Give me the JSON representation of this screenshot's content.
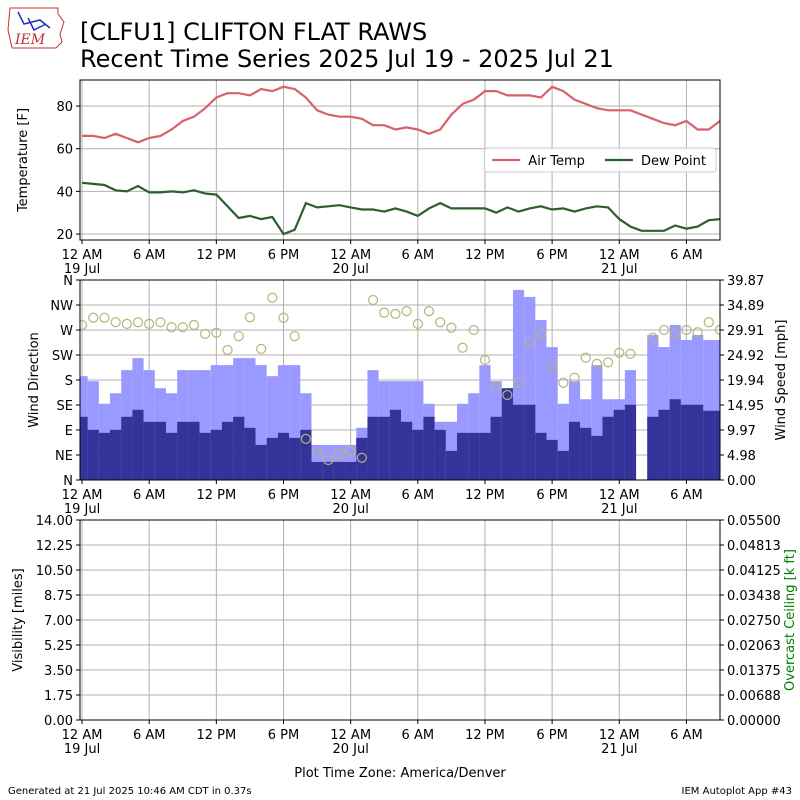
{
  "header": {
    "logo": "IEM",
    "title": "[CLFU1] CLIFTON FLAT RAWS",
    "subtitle": "Recent Time Series 2025 Jul 19 - 2025 Jul 21"
  },
  "footer": {
    "left": "Generated at 21 Jul 2025 10:46 AM CDT in 0.37s",
    "right": "IEM Autoplot App #43"
  },
  "chart_data": [
    {
      "type": "line",
      "ylabel": "Temperature [F]",
      "grid": true,
      "legend": "center right",
      "x": [
        "2025-07-19 00:00",
        "2025-07-19 01:00",
        "2025-07-19 02:00",
        "2025-07-19 03:00",
        "2025-07-19 04:00",
        "2025-07-19 05:00",
        "2025-07-19 06:00",
        "2025-07-19 07:00",
        "2025-07-19 08:00",
        "2025-07-19 09:00",
        "2025-07-19 10:00",
        "2025-07-19 11:00",
        "2025-07-19 12:00",
        "2025-07-19 13:00",
        "2025-07-19 14:00",
        "2025-07-19 15:00",
        "2025-07-19 16:00",
        "2025-07-19 17:00",
        "2025-07-19 18:00",
        "2025-07-19 19:00",
        "2025-07-19 20:00",
        "2025-07-19 21:00",
        "2025-07-19 22:00",
        "2025-07-19 23:00",
        "2025-07-20 00:00",
        "2025-07-20 01:00",
        "2025-07-20 02:00",
        "2025-07-20 03:00",
        "2025-07-20 04:00",
        "2025-07-20 05:00",
        "2025-07-20 06:00",
        "2025-07-20 07:00",
        "2025-07-20 08:00",
        "2025-07-20 09:00",
        "2025-07-20 10:00",
        "2025-07-20 11:00",
        "2025-07-20 12:00",
        "2025-07-20 13:00",
        "2025-07-20 14:00",
        "2025-07-20 15:00",
        "2025-07-20 16:00",
        "2025-07-20 17:00",
        "2025-07-20 18:00",
        "2025-07-20 19:00",
        "2025-07-20 20:00",
        "2025-07-20 21:00",
        "2025-07-20 22:00",
        "2025-07-20 23:00",
        "2025-07-21 00:00",
        "2025-07-21 01:00",
        "2025-07-21 02:00",
        "2025-07-21 03:00",
        "2025-07-21 04:00",
        "2025-07-21 05:00",
        "2025-07-21 06:00",
        "2025-07-21 07:00",
        "2025-07-21 08:00",
        "2025-07-21 09:00"
      ],
      "xlim": [
        "2025-07-18 23:49",
        "2025-07-21 09:00"
      ],
      "xticks": [
        {
          "value": "2025-07-19 00:00",
          "label": "12 AM\n19 Jul"
        },
        {
          "value": "2025-07-19 06:00",
          "label": "6 AM"
        },
        {
          "value": "2025-07-19 12:00",
          "label": "12 PM"
        },
        {
          "value": "2025-07-19 18:00",
          "label": "6 PM"
        },
        {
          "value": "2025-07-20 00:00",
          "label": "12 AM\n20 Jul"
        },
        {
          "value": "2025-07-20 06:00",
          "label": "6 AM"
        },
        {
          "value": "2025-07-20 12:00",
          "label": "12 PM"
        },
        {
          "value": "2025-07-20 18:00",
          "label": "6 PM"
        },
        {
          "value": "2025-07-21 00:00",
          "label": "12 AM\n21 Jul"
        },
        {
          "value": "2025-07-21 06:00",
          "label": "6 AM"
        }
      ],
      "ylim": [
        17.2,
        92.2
      ],
      "yticks": [
        20,
        40,
        60,
        80
      ],
      "series": [
        {
          "name": "Air Temp",
          "color": "#d9606a",
          "values": [
            66,
            66,
            65,
            67,
            65,
            63,
            65,
            66,
            69,
            73,
            75,
            79,
            84,
            86,
            86,
            85,
            88,
            87,
            89,
            88,
            84,
            78,
            76,
            75,
            75,
            74,
            71,
            71,
            69,
            70,
            69,
            67,
            69,
            76,
            81,
            83,
            87,
            87,
            85,
            85,
            85,
            84,
            89,
            87,
            83,
            81,
            79,
            78,
            78,
            78,
            76,
            74,
            72,
            71,
            73,
            69,
            69,
            73
          ]
        },
        {
          "name": "Dew Point",
          "color": "#2e5e2e",
          "values": [
            44,
            43.5,
            43,
            40.5,
            40,
            42.5,
            39.5,
            39.5,
            40,
            39.5,
            40.5,
            39,
            38.5,
            33,
            27.5,
            28.5,
            27,
            28,
            20,
            22,
            34.5,
            32.5,
            33,
            33.5,
            32.5,
            31.5,
            31.5,
            30.5,
            32,
            30.5,
            28.5,
            32,
            34.5,
            32,
            32,
            32,
            32,
            30,
            32.5,
            30.5,
            32,
            33,
            31.5,
            32,
            30.5,
            32,
            33,
            32.5,
            27,
            23.5,
            21.5,
            21.5,
            21.5,
            24,
            22.5,
            23.5,
            26.5,
            27
          ]
        }
      ]
    },
    {
      "type": "bar",
      "ylabel": "Wind Direction",
      "y2label": "Wind Speed [mph]",
      "grid": true,
      "x": [
        "2025-07-19 00:00",
        "2025-07-19 01:00",
        "2025-07-19 02:00",
        "2025-07-19 03:00",
        "2025-07-19 04:00",
        "2025-07-19 05:00",
        "2025-07-19 06:00",
        "2025-07-19 07:00",
        "2025-07-19 08:00",
        "2025-07-19 09:00",
        "2025-07-19 10:00",
        "2025-07-19 11:00",
        "2025-07-19 12:00",
        "2025-07-19 13:00",
        "2025-07-19 14:00",
        "2025-07-19 15:00",
        "2025-07-19 16:00",
        "2025-07-19 17:00",
        "2025-07-19 18:00",
        "2025-07-19 19:00",
        "2025-07-19 20:00",
        "2025-07-19 21:00",
        "2025-07-19 22:00",
        "2025-07-19 23:00",
        "2025-07-20 00:00",
        "2025-07-20 01:00",
        "2025-07-20 02:00",
        "2025-07-20 03:00",
        "2025-07-20 04:00",
        "2025-07-20 05:00",
        "2025-07-20 06:00",
        "2025-07-20 07:00",
        "2025-07-20 08:00",
        "2025-07-20 09:00",
        "2025-07-20 10:00",
        "2025-07-20 11:00",
        "2025-07-20 12:00",
        "2025-07-20 13:00",
        "2025-07-20 14:00",
        "2025-07-20 15:00",
        "2025-07-20 16:00",
        "2025-07-20 17:00",
        "2025-07-20 18:00",
        "2025-07-20 19:00",
        "2025-07-20 20:00",
        "2025-07-20 21:00",
        "2025-07-20 22:00",
        "2025-07-20 23:00",
        "2025-07-21 00:00",
        "2025-07-21 01:00",
        "2025-07-21 02:00",
        "2025-07-21 03:00",
        "2025-07-21 04:00",
        "2025-07-21 05:00",
        "2025-07-21 06:00",
        "2025-07-21 07:00",
        "2025-07-21 08:00",
        "2025-07-21 09:00"
      ],
      "xlim": [
        "2025-07-18 23:49",
        "2025-07-21 09:00"
      ],
      "xticks": [
        {
          "value": "2025-07-19 00:00",
          "label": "12 AM\n19 Jul"
        },
        {
          "value": "2025-07-19 06:00",
          "label": "6 AM"
        },
        {
          "value": "2025-07-19 12:00",
          "label": "12 PM"
        },
        {
          "value": "2025-07-19 18:00",
          "label": "6 PM"
        },
        {
          "value": "2025-07-20 00:00",
          "label": "12 AM\n20 Jul"
        },
        {
          "value": "2025-07-20 06:00",
          "label": "6 AM"
        },
        {
          "value": "2025-07-20 12:00",
          "label": "12 PM"
        },
        {
          "value": "2025-07-20 18:00",
          "label": "6 PM"
        },
        {
          "value": "2025-07-21 00:00",
          "label": "12 AM\n21 Jul"
        },
        {
          "value": "2025-07-21 06:00",
          "label": "6 AM"
        }
      ],
      "ylim": [
        0,
        360
      ],
      "yticks": [
        {
          "value": 0,
          "label": "N"
        },
        {
          "value": 45,
          "label": "NE"
        },
        {
          "value": 90,
          "label": "E"
        },
        {
          "value": 135,
          "label": "SE"
        },
        {
          "value": 180,
          "label": "S"
        },
        {
          "value": 225,
          "label": "SW"
        },
        {
          "value": 270,
          "label": "W"
        },
        {
          "value": 315,
          "label": "NW"
        },
        {
          "value": 360,
          "label": "N"
        }
      ],
      "y2lim": [
        0,
        39.87
      ],
      "y2ticks": [
        {
          "value": 0,
          "label": "0.00"
        },
        4.98,
        9.97,
        14.95,
        19.94,
        24.92,
        29.91,
        34.89,
        39.87
      ],
      "series": [
        {
          "type": "bar",
          "axis": "y2",
          "color": "#9999ff",
          "values": [
            20.7,
            19.7,
            15.2,
            17.3,
            21.9,
            24.3,
            21.9,
            18.3,
            17.3,
            21.9,
            21.9,
            21.9,
            22.9,
            22.9,
            24.3,
            24.3,
            22.9,
            20.7,
            22.9,
            22.9,
            17.3,
            7.0,
            7.0,
            7.0,
            7.0,
            10.4,
            21.9,
            19.7,
            19.7,
            19.7,
            19.7,
            15.2,
            11.6,
            11.6,
            15.2,
            17.3,
            22.9,
            19.7,
            17.3,
            37.9,
            36.5,
            31.9,
            26.5,
            15.2,
            19.7,
            16.1,
            22.9,
            16.1,
            16.1,
            21.9,
            null,
            28.9,
            26.5,
            30.9,
            27.9,
            28.9,
            27.9,
            27.9
          ]
        },
        {
          "type": "bar",
          "axis": "y2",
          "color": "#333399",
          "values": [
            12.6,
            10.0,
            9.4,
            10.0,
            12.6,
            14.0,
            11.6,
            11.6,
            9.4,
            11.6,
            11.6,
            9.4,
            10.0,
            11.6,
            12.6,
            10.4,
            7.0,
            8.4,
            9.4,
            8.4,
            10.0,
            3.6,
            3.6,
            3.6,
            3.6,
            8.4,
            12.6,
            12.6,
            14.0,
            11.6,
            10.0,
            12.6,
            10.0,
            5.8,
            9.4,
            9.4,
            9.4,
            12.6,
            18.3,
            15.0,
            15.0,
            9.4,
            8.0,
            5.8,
            11.6,
            10.4,
            8.8,
            12.6,
            14.0,
            15.0,
            null,
            12.6,
            14.0,
            16.1,
            15.0,
            15.0,
            13.8,
            13.8
          ]
        },
        {
          "type": "scatter",
          "color": "#b5b57a",
          "values": [
            279,
            292,
            292,
            284,
            281,
            284,
            281,
            284,
            275,
            275,
            279,
            263,
            265,
            234,
            259,
            293,
            236,
            328,
            292,
            259,
            74,
            49,
            36,
            47,
            52,
            40,
            324,
            301,
            299,
            304,
            281,
            304,
            284,
            274,
            238,
            270,
            216,
            169,
            153,
            175,
            247,
            263,
            203,
            175,
            184,
            220,
            209,
            212,
            229,
            227,
            null,
            256,
            270,
            263,
            270,
            266,
            284,
            270
          ]
        }
      ]
    },
    {
      "type": "line",
      "ylabel": "Visibility [miles]",
      "y2label": "Overcast Ceiling [k ft]",
      "y2label_color": "#008000",
      "xlabel": "Plot Time Zone: America/Denver",
      "grid": true,
      "xlim": [
        "2025-07-18 23:49",
        "2025-07-21 09:00"
      ],
      "xticks": [
        {
          "value": "2025-07-19 00:00",
          "label": "12 AM\n19 Jul"
        },
        {
          "value": "2025-07-19 06:00",
          "label": "6 AM"
        },
        {
          "value": "2025-07-19 12:00",
          "label": "12 PM"
        },
        {
          "value": "2025-07-19 18:00",
          "label": "6 PM"
        },
        {
          "value": "2025-07-20 00:00",
          "label": "12 AM\n20 Jul"
        },
        {
          "value": "2025-07-20 06:00",
          "label": "6 AM"
        },
        {
          "value": "2025-07-20 12:00",
          "label": "12 PM"
        },
        {
          "value": "2025-07-20 18:00",
          "label": "6 PM"
        },
        {
          "value": "2025-07-21 00:00",
          "label": "12 AM\n21 Jul"
        },
        {
          "value": "2025-07-21 06:00",
          "label": "6 AM"
        }
      ],
      "ylim": [
        0,
        14
      ],
      "yticks": [
        {
          "value": 0,
          "label": "0.00"
        },
        1.75,
        {
          "value": 3.5,
          "label": "3.50"
        },
        5.25,
        {
          "value": 7,
          "label": "7.00"
        },
        8.75,
        {
          "value": 10.5,
          "label": "10.50"
        },
        12.25,
        {
          "value": 14,
          "label": "14.00"
        }
      ],
      "y2lim": [
        0,
        0.055
      ],
      "y2ticks": [
        {
          "value": 0,
          "label": "0.00000"
        },
        0.00688,
        0.01375,
        0.02063,
        {
          "value": 0.0275,
          "label": "0.02750"
        },
        0.03438,
        0.04125,
        0.04813,
        {
          "value": 0.055,
          "label": "0.05500"
        }
      ],
      "series": []
    }
  ]
}
